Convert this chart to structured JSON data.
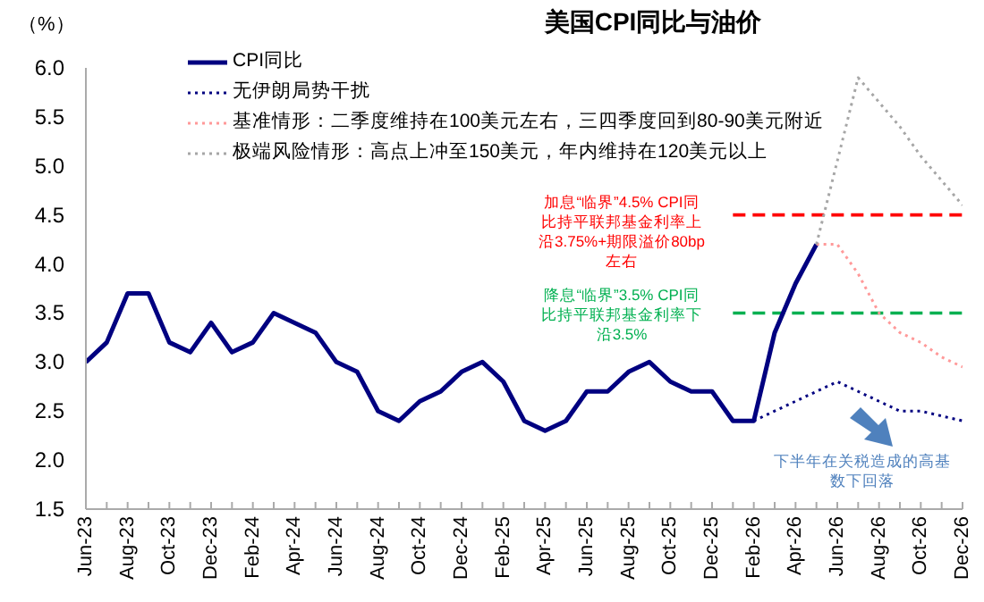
{
  "chart_data": {
    "type": "line",
    "title": "美国CPI同比与油价",
    "ylabel": "（%）",
    "categories": [
      "Jun-23",
      null,
      "Aug-23",
      null,
      "Oct-23",
      null,
      "Dec-23",
      null,
      "Feb-24",
      null,
      "Apr-24",
      null,
      "Jun-24",
      null,
      "Aug-24",
      null,
      "Oct-24",
      null,
      "Dec-24",
      null,
      "Feb-25",
      null,
      "Apr-25",
      null,
      "Jun-25",
      null,
      "Aug-25",
      null,
      "Oct-25",
      null,
      "Dec-25",
      null,
      "Feb-26",
      null,
      "Apr-26",
      null,
      "Jun-26",
      null,
      "Aug-26",
      null,
      "Oct-26",
      null,
      "Dec-26"
    ],
    "series": [
      {
        "name": "CPI同比",
        "color": "#000080",
        "line_style": "solid",
        "values": [
          3.0,
          3.2,
          3.7,
          3.7,
          3.2,
          3.1,
          3.4,
          3.1,
          3.2,
          3.5,
          3.4,
          3.3,
          3.0,
          2.9,
          2.5,
          2.4,
          2.6,
          2.7,
          2.9,
          3.0,
          2.8,
          2.4,
          2.3,
          2.4,
          2.7,
          2.7,
          2.9,
          3.0,
          2.8,
          2.7,
          2.7,
          2.4,
          2.4,
          3.3,
          3.8,
          4.2,
          null,
          null,
          null,
          null,
          null,
          null,
          null
        ]
      },
      {
        "name": "无伊朗局势干扰",
        "color": "#000080",
        "line_style": "dotted",
        "values": [
          null,
          null,
          null,
          null,
          null,
          null,
          null,
          null,
          null,
          null,
          null,
          null,
          null,
          null,
          null,
          null,
          null,
          null,
          null,
          null,
          null,
          null,
          null,
          null,
          null,
          null,
          null,
          null,
          null,
          null,
          null,
          null,
          2.4,
          2.5,
          2.6,
          2.7,
          2.8,
          2.7,
          2.6,
          2.5,
          2.5,
          2.45,
          2.4
        ]
      },
      {
        "name": "基准情形：二季度维持在100美元左右，三四季度回到80-90美元附近",
        "color": "#ff9999",
        "line_style": "dotted",
        "values": [
          null,
          null,
          null,
          null,
          null,
          null,
          null,
          null,
          null,
          null,
          null,
          null,
          null,
          null,
          null,
          null,
          null,
          null,
          null,
          null,
          null,
          null,
          null,
          null,
          null,
          null,
          null,
          null,
          null,
          null,
          null,
          null,
          null,
          null,
          null,
          4.2,
          4.2,
          3.9,
          3.5,
          3.3,
          3.2,
          3.05,
          2.95
        ]
      },
      {
        "name": "极端风险情形：高点上冲至150美元，年内维持在120美元以上",
        "color": "#a6a6a6",
        "line_style": "dotted",
        "values": [
          null,
          null,
          null,
          null,
          null,
          null,
          null,
          null,
          null,
          null,
          null,
          null,
          null,
          null,
          null,
          null,
          null,
          null,
          null,
          null,
          null,
          null,
          null,
          null,
          null,
          null,
          null,
          null,
          null,
          null,
          null,
          null,
          null,
          null,
          null,
          4.2,
          5.05,
          5.9,
          5.65,
          5.4,
          5.1,
          4.85,
          4.6
        ]
      }
    ],
    "ylim": [
      1.5,
      6.0
    ],
    "yticks": [
      1.5,
      {
        "value": 2,
        "label": "2.0"
      },
      2.5,
      {
        "value": 3,
        "label": "3.0"
      },
      3.5,
      {
        "value": 4,
        "label": "4.0"
      },
      4.5,
      {
        "value": 5,
        "label": "5.0"
      },
      5.5,
      {
        "value": 6,
        "label": "6.0"
      }
    ],
    "ref_lines": [
      {
        "axis": "y",
        "value": 4.5,
        "color": "#ff0000",
        "line_style": "dashed"
      },
      {
        "axis": "y",
        "value": 3.5,
        "color": "#00b050",
        "line_style": "dashed"
      }
    ],
    "annotations": [
      "加息“临界”4.5% CPI同比持平联邦基金利率上沿3.75%+期限溢价80bp左右",
      "降息“临界”3.5% CPI同比持平联邦基金利率下沿3.5%",
      "下半年在关税造成的高基数下回落"
    ],
    "legend": "top left",
    "grid": false
  }
}
